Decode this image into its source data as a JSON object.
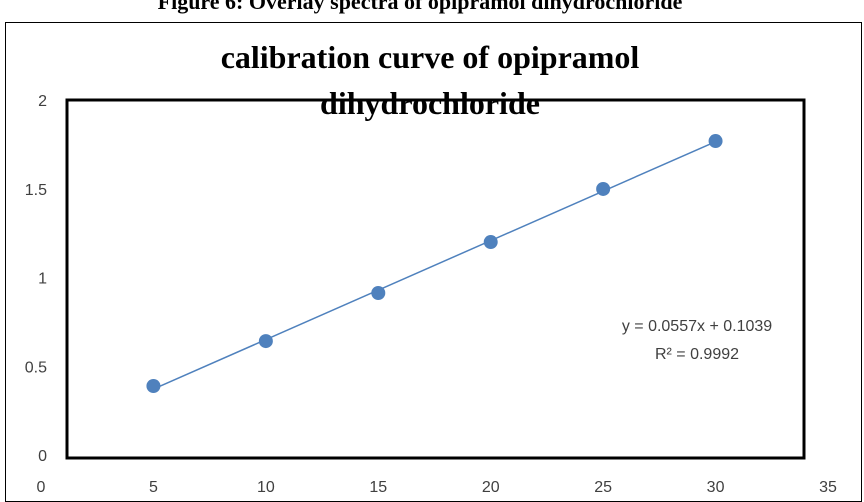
{
  "chart_data": {
    "type": "scatter",
    "caption": "Figure 6: Overlay spectra of opipramol dihydrochloride",
    "title": "calibration curve of opipramol dihydrochloride",
    "x": [
      5,
      10,
      15,
      20,
      25,
      30
    ],
    "series": [
      {
        "color": "#4f81bd",
        "values": [
          0.4,
          0.653,
          0.924,
          1.211,
          1.51,
          1.78
        ]
      }
    ],
    "trendline": {
      "equation": "y = 0.0557x + 0.1039",
      "r_squared": "R² = 0.9992",
      "color": "#4f81bd"
    },
    "xlim": [
      0,
      35
    ],
    "xticks": [
      0,
      5,
      10,
      15,
      20,
      25,
      30,
      35
    ],
    "ylim": [
      0,
      2
    ],
    "yticks": [
      0,
      0.5,
      1,
      1.5,
      2
    ]
  }
}
